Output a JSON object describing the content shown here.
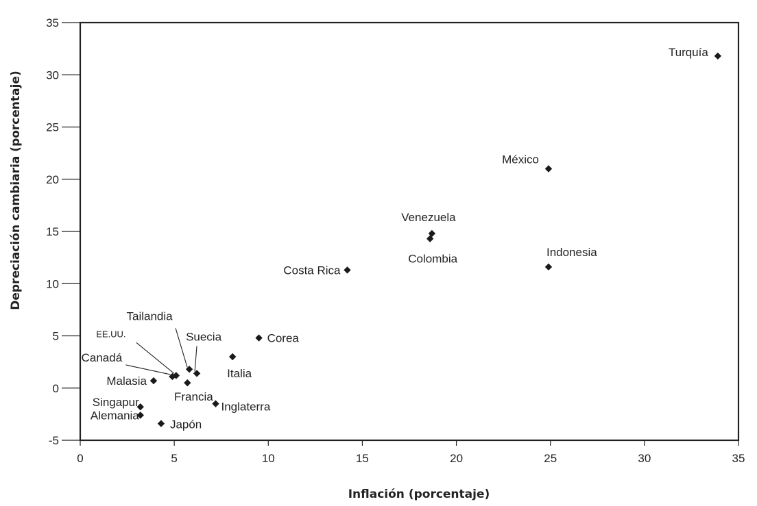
{
  "chart_data": {
    "type": "scatter",
    "xlabel": "Inflación (porcentaje)",
    "ylabel": "Depreciación cambiaria (porcentaje)",
    "xlim": [
      0,
      35
    ],
    "ylim": [
      -5,
      35
    ],
    "xticks": [
      "0",
      "5",
      "10",
      "15",
      "20",
      "25",
      "30",
      "35"
    ],
    "yticks": [
      "-5",
      "0",
      "5",
      "10",
      "15",
      "20",
      "25",
      "30",
      "35"
    ],
    "grid": false,
    "marker": "diamond",
    "marker_color": "#1a1a1a",
    "points": [
      {
        "name": "Turquía",
        "x": 33.9,
        "y": 31.8
      },
      {
        "name": "México",
        "x": 24.9,
        "y": 21.0
      },
      {
        "name": "Venezuela",
        "x": 18.7,
        "y": 14.8
      },
      {
        "name": "Colombia",
        "x": 18.6,
        "y": 14.3
      },
      {
        "name": "Indonesia",
        "x": 24.9,
        "y": 11.6
      },
      {
        "name": "Costa Rica",
        "x": 14.2,
        "y": 11.3
      },
      {
        "name": "Corea",
        "x": 9.5,
        "y": 4.8
      },
      {
        "name": "Italia",
        "x": 8.1,
        "y": 3.0
      },
      {
        "name": "Tailandia",
        "x": 5.8,
        "y": 1.8
      },
      {
        "name": "Suecia",
        "x": 6.2,
        "y": 1.4
      },
      {
        "name": "EE.UU.",
        "x": 5.1,
        "y": 1.2
      },
      {
        "name": "Canadá",
        "x": 4.9,
        "y": 1.1
      },
      {
        "name": "Malasia",
        "x": 3.9,
        "y": 0.7
      },
      {
        "name": "Francia",
        "x": 5.7,
        "y": 0.5
      },
      {
        "name": "Inglaterra",
        "x": 7.2,
        "y": -1.5
      },
      {
        "name": "Singapur",
        "x": 3.2,
        "y": -1.8
      },
      {
        "name": "Alemania",
        "x": 3.2,
        "y": -2.6
      },
      {
        "name": "Japón",
        "x": 4.3,
        "y": -3.4
      }
    ]
  }
}
